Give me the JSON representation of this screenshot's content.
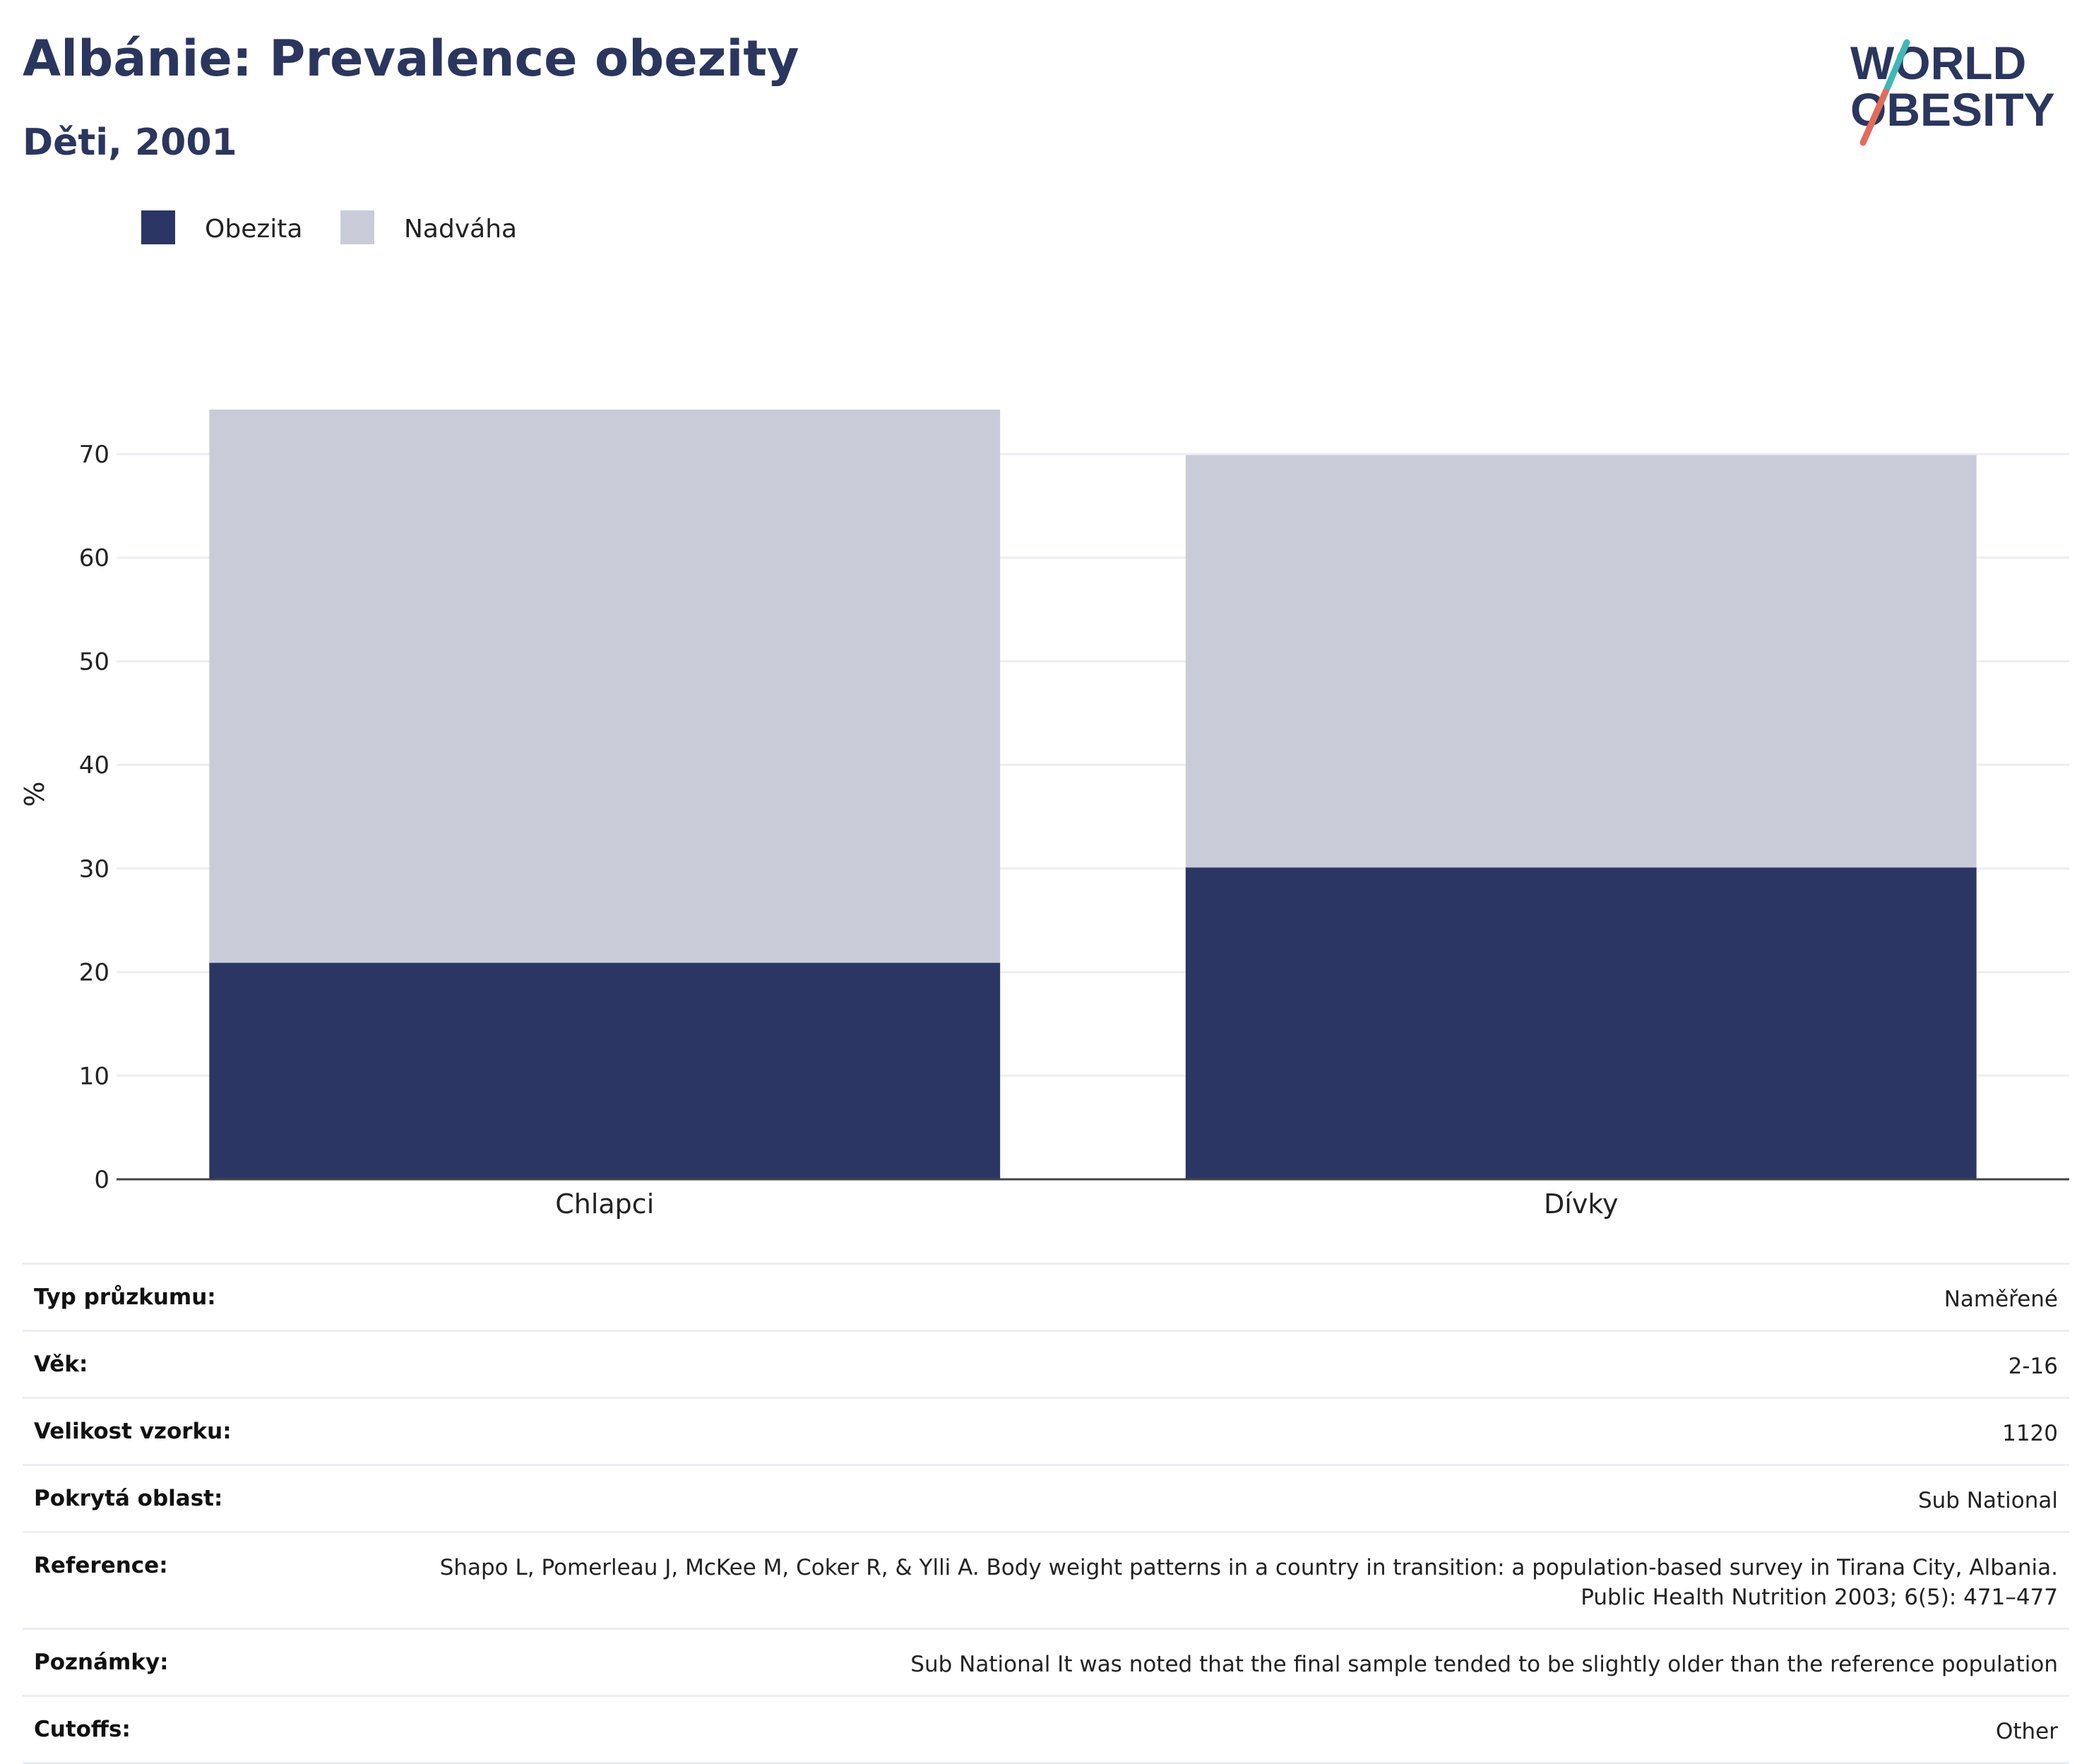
{
  "header": {
    "title": "Albánie: Prevalence obezity",
    "subtitle": "Děti, 2001"
  },
  "logo": {
    "line1": "WORLD",
    "line2": "OBESITY"
  },
  "colors": {
    "obesity": "#2b3664",
    "overweight": "#c9ccd8",
    "title": "#2b365f",
    "grid": "#eceef4",
    "axis": "#444444"
  },
  "chart_data": {
    "type": "bar",
    "stacked": true,
    "categories": [
      "Chlapci",
      "Dívky"
    ],
    "series": [
      {
        "name": "Obezita",
        "values": [
          20.9,
          30.1
        ]
      },
      {
        "name": "Nadváha",
        "values": [
          53.4,
          39.8
        ]
      }
    ],
    "ylabel": "%",
    "ylim": [
      0,
      76
    ],
    "yticks": [
      0,
      10,
      20,
      30,
      40,
      50,
      60,
      70
    ],
    "grid": true,
    "legend": "top-left"
  },
  "info": [
    {
      "label": "Typ průzkumu:",
      "value": "Naměřené"
    },
    {
      "label": "Věk:",
      "value": "2-16"
    },
    {
      "label": "Velikost vzorku:",
      "value": "1120"
    },
    {
      "label": "Pokrytá oblast:",
      "value": "Sub National"
    },
    {
      "label": "Reference:",
      "value": "Shapo L, Pomerleau J, McKee M, Coker R, & Ylli A. Body weight patterns in a country in transition: a population-based survey in Tirana City, Albania. Public Health Nutrition 2003; 6(5): 471–477"
    },
    {
      "label": "Poznámky:",
      "value": "Sub National It was noted that the final sample tended to be slightly older than the reference population"
    },
    {
      "label": "Cutoffs:",
      "value": "Other"
    }
  ]
}
